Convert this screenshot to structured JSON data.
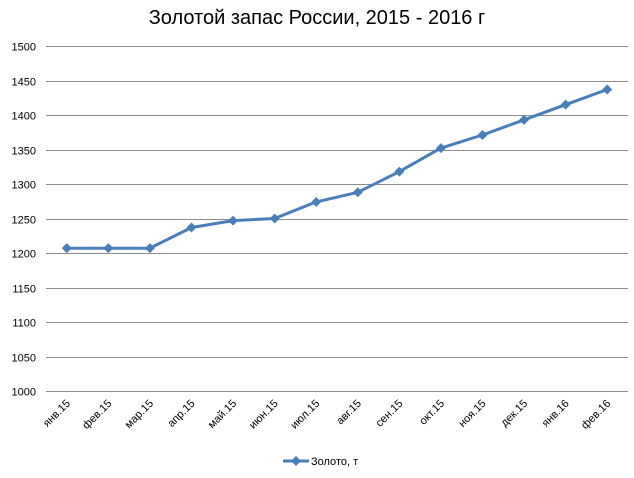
{
  "chart_data": {
    "type": "line",
    "title": "Золотой запас России, 2015 - 2016 г",
    "categories": [
      "янв.15",
      "фев.15",
      "мар.15",
      "апр.15",
      "май.15",
      "июн.15",
      "июл.15",
      "авг.15",
      "сен.15",
      "окт.15",
      "ноя.15",
      "дек.15",
      "янв.16",
      "фев.16"
    ],
    "series": [
      {
        "name": "Золото, т",
        "color": "#4a7ebb",
        "values": [
          1207,
          1207,
          1207,
          1237,
          1247,
          1250,
          1274,
          1288,
          1318,
          1352,
          1371,
          1393,
          1415,
          1437
        ]
      }
    ],
    "ylim": [
      1000,
      1500
    ],
    "yticks": [
      1000,
      1050,
      1100,
      1150,
      1200,
      1250,
      1300,
      1350,
      1400,
      1450,
      1500
    ],
    "grid": true,
    "legend_position": "bottom"
  }
}
